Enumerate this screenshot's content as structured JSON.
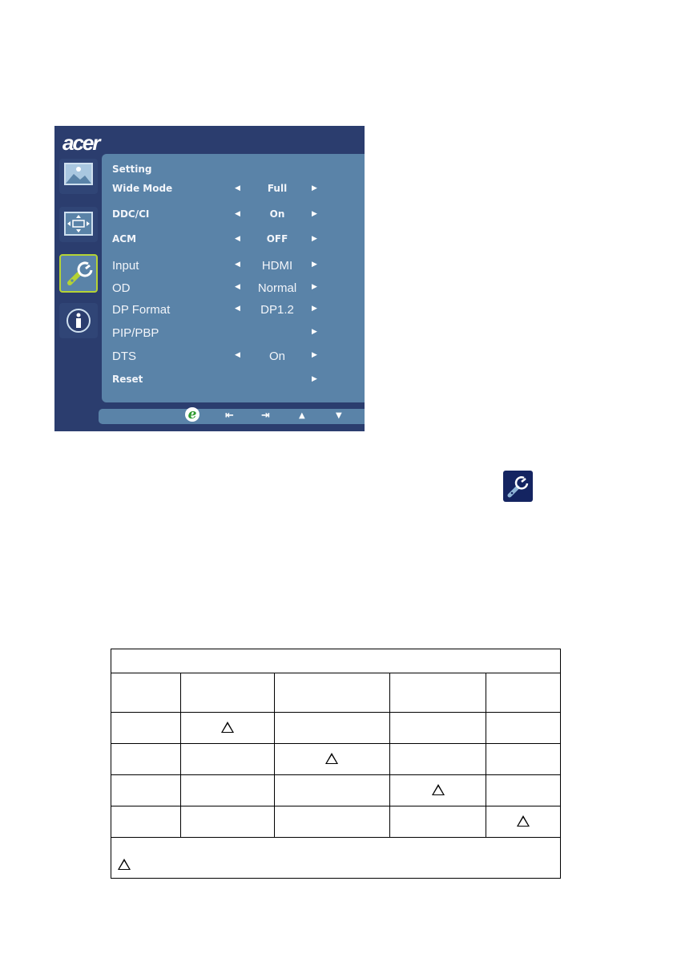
{
  "osd": {
    "brand": "acer",
    "side_icons": [
      "picture-icon",
      "display-position-icon",
      "wrench-settings-icon",
      "info-icon"
    ],
    "selected_side_icon": "wrench-settings-icon",
    "menu_title": "Setting",
    "items": [
      {
        "label": "Wide Mode",
        "value": "Full",
        "left_arrow": true
      },
      {
        "label": "DDC/CI",
        "value": "On",
        "left_arrow": true
      },
      {
        "label": "ACM",
        "value": "OFF",
        "left_arrow": true
      },
      {
        "label": "Input",
        "value": "HDMI",
        "left_arrow": true
      },
      {
        "label": "OD",
        "value": "Normal",
        "left_arrow": true
      },
      {
        "label": "DP Format",
        "value": "DP1.2",
        "left_arrow": true
      },
      {
        "label": "PIP/PBP",
        "value": "",
        "left_arrow": false
      },
      {
        "label": "DTS",
        "value": "On",
        "left_arrow": true
      },
      {
        "label": "Reset",
        "value": "",
        "left_arrow": false
      }
    ],
    "bottom_buttons": [
      "e-mode-icon",
      "exit-icon",
      "enter-icon",
      "up-arrow-icon",
      "down-arrow-icon"
    ],
    "colors": {
      "frame": "#2b3d6e",
      "panel": "#5a83a8",
      "selected_border": "#b5d334"
    }
  },
  "inline_icon": {
    "name": "wrench-settings-icon",
    "background": "#142461"
  }
}
